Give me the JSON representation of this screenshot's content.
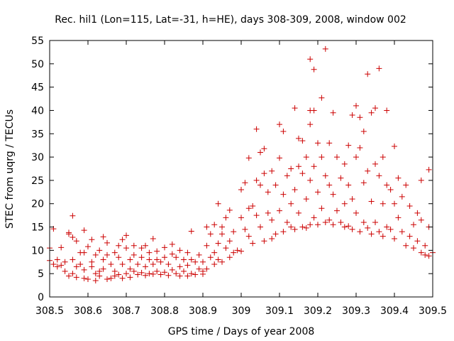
{
  "chart_data": {
    "type": "scatter",
    "title": "Rec. hil1 (Lon=115, Lat=-31, h=HE), days 308-309, 2008, window 002",
    "xlabel": "GPS time / Days of year 2008",
    "ylabel": "STEC from uqrg / TECUs",
    "xlim": [
      308.5,
      309.5
    ],
    "ylim": [
      0,
      55
    ],
    "xticks": [
      308.5,
      308.6,
      308.7,
      308.8,
      308.9,
      309.0,
      309.1,
      309.2,
      309.3,
      309.4,
      309.5
    ],
    "xtick_labels": [
      "308.5",
      "308.6",
      "308.7",
      "308.8",
      "308.9",
      "309",
      "309.1",
      "309.2",
      "309.3",
      "309.4",
      "309.5"
    ],
    "yticks": [
      0,
      5,
      10,
      15,
      20,
      25,
      30,
      35,
      40,
      45,
      50,
      55
    ],
    "ytick_labels": [
      "0",
      "5",
      "10",
      "15",
      "20",
      "25",
      "30",
      "35",
      "40",
      "45",
      "50",
      "55"
    ],
    "grid": false,
    "marker": "+",
    "marker_color": "#cc0000",
    "series": [
      {
        "name": "STEC",
        "points": [
          [
            308.5,
            7.8
          ],
          [
            308.5,
            10.5
          ],
          [
            308.51,
            14.6
          ],
          [
            308.51,
            7.0
          ],
          [
            308.52,
            6.5
          ],
          [
            308.52,
            8.0
          ],
          [
            308.53,
            6.8
          ],
          [
            308.53,
            10.6
          ],
          [
            308.54,
            5.5
          ],
          [
            308.54,
            7.5
          ],
          [
            308.55,
            13.8
          ],
          [
            308.55,
            13.5
          ],
          [
            308.55,
            4.5
          ],
          [
            308.56,
            17.4
          ],
          [
            308.56,
            12.8
          ],
          [
            308.56,
            8.0
          ],
          [
            308.56,
            5.0
          ],
          [
            308.57,
            12.0
          ],
          [
            308.57,
            6.5
          ],
          [
            308.57,
            4.2
          ],
          [
            308.58,
            9.5
          ],
          [
            308.58,
            7.0
          ],
          [
            308.59,
            14.3
          ],
          [
            308.59,
            9.5
          ],
          [
            308.59,
            5.8
          ],
          [
            308.59,
            4.0
          ],
          [
            308.6,
            10.8
          ],
          [
            308.6,
            3.8
          ],
          [
            308.61,
            12.3
          ],
          [
            308.61,
            7.5
          ],
          [
            308.61,
            6.5
          ],
          [
            308.62,
            9.0
          ],
          [
            308.62,
            5.0
          ],
          [
            308.62,
            3.5
          ],
          [
            308.63,
            10.0
          ],
          [
            308.63,
            5.5
          ],
          [
            308.63,
            4.5
          ],
          [
            308.64,
            8.0
          ],
          [
            308.64,
            12.9
          ],
          [
            308.64,
            6.0
          ],
          [
            308.65,
            11.6
          ],
          [
            308.65,
            9.0
          ],
          [
            308.65,
            3.8
          ],
          [
            308.66,
            7.0
          ],
          [
            308.66,
            4.0
          ],
          [
            308.67,
            9.5
          ],
          [
            308.67,
            5.5
          ],
          [
            308.67,
            4.5
          ],
          [
            308.68,
            11.0
          ],
          [
            308.68,
            8.5
          ],
          [
            308.68,
            4.8
          ],
          [
            308.69,
            12.3
          ],
          [
            308.69,
            7.0
          ],
          [
            308.69,
            4.0
          ],
          [
            308.7,
            10.5
          ],
          [
            308.7,
            13.2
          ],
          [
            308.7,
            5.0
          ],
          [
            308.71,
            8.0
          ],
          [
            308.71,
            6.0
          ],
          [
            308.71,
            4.2
          ],
          [
            308.72,
            11.0
          ],
          [
            308.72,
            9.0
          ],
          [
            308.72,
            5.5
          ],
          [
            308.73,
            7.0
          ],
          [
            308.73,
            4.8
          ],
          [
            308.74,
            10.5
          ],
          [
            308.74,
            8.5
          ],
          [
            308.74,
            5.2
          ],
          [
            308.75,
            11.0
          ],
          [
            308.75,
            6.5
          ],
          [
            308.75,
            4.6
          ],
          [
            308.76,
            8.0
          ],
          [
            308.76,
            9.5
          ],
          [
            308.76,
            5.0
          ],
          [
            308.77,
            12.5
          ],
          [
            308.77,
            7.0
          ],
          [
            308.77,
            4.9
          ],
          [
            308.78,
            9.8
          ],
          [
            308.78,
            8.0
          ],
          [
            308.78,
            5.5
          ],
          [
            308.79,
            7.5
          ],
          [
            308.79,
            4.8
          ],
          [
            308.8,
            10.6
          ],
          [
            308.8,
            8.5
          ],
          [
            308.8,
            5.3
          ],
          [
            308.81,
            7.0
          ],
          [
            308.81,
            4.6
          ],
          [
            308.82,
            11.3
          ],
          [
            308.82,
            9.2
          ],
          [
            308.82,
            5.8
          ],
          [
            308.83,
            8.5
          ],
          [
            308.83,
            5.0
          ],
          [
            308.84,
            6.5
          ],
          [
            308.84,
            10.0
          ],
          [
            308.84,
            4.5
          ],
          [
            308.85,
            8.0
          ],
          [
            308.85,
            5.5
          ],
          [
            308.86,
            9.5
          ],
          [
            308.86,
            6.8
          ],
          [
            308.86,
            4.5
          ],
          [
            308.87,
            14.1
          ],
          [
            308.87,
            8.0
          ],
          [
            308.87,
            5.0
          ],
          [
            308.88,
            7.5
          ],
          [
            308.88,
            4.8
          ],
          [
            308.89,
            9.0
          ],
          [
            308.89,
            6.0
          ],
          [
            308.9,
            5.5
          ],
          [
            308.9,
            7.5
          ],
          [
            308.9,
            4.9
          ],
          [
            308.91,
            11.0
          ],
          [
            308.91,
            15.0
          ],
          [
            308.91,
            6.0
          ],
          [
            308.92,
            8.5
          ],
          [
            308.92,
            13.5
          ],
          [
            308.93,
            15.5
          ],
          [
            308.93,
            9.5
          ],
          [
            308.93,
            7.0
          ],
          [
            308.94,
            20.0
          ],
          [
            308.94,
            11.5
          ],
          [
            308.94,
            8.0
          ],
          [
            308.95,
            13.5
          ],
          [
            308.95,
            15.0
          ],
          [
            308.95,
            7.5
          ],
          [
            308.96,
            17.0
          ],
          [
            308.96,
            10.5
          ],
          [
            308.97,
            18.6
          ],
          [
            308.97,
            12.0
          ],
          [
            308.97,
            8.5
          ],
          [
            308.98,
            14.0
          ],
          [
            308.98,
            9.5
          ],
          [
            308.99,
            10.0
          ],
          [
            309.0,
            23.0
          ],
          [
            309.0,
            17.0
          ],
          [
            309.0,
            9.8
          ],
          [
            309.01,
            24.5
          ],
          [
            309.01,
            14.5
          ],
          [
            309.02,
            29.8
          ],
          [
            309.02,
            19.0
          ],
          [
            309.02,
            13.0
          ],
          [
            309.03,
            19.5
          ],
          [
            309.03,
            11.5
          ],
          [
            309.04,
            36.0
          ],
          [
            309.04,
            25.0
          ],
          [
            309.04,
            17.5
          ],
          [
            309.05,
            31.0
          ],
          [
            309.05,
            24.0
          ],
          [
            309.05,
            15.0
          ],
          [
            309.06,
            31.8
          ],
          [
            309.06,
            26.5
          ],
          [
            309.06,
            12.0
          ],
          [
            309.07,
            22.5
          ],
          [
            309.07,
            18.0
          ],
          [
            309.08,
            27.0
          ],
          [
            309.08,
            16.5
          ],
          [
            309.08,
            12.5
          ],
          [
            309.09,
            24.0
          ],
          [
            309.09,
            13.5
          ],
          [
            309.1,
            37.0
          ],
          [
            309.1,
            29.8
          ],
          [
            309.1,
            18.5
          ],
          [
            309.11,
            35.5
          ],
          [
            309.11,
            22.0
          ],
          [
            309.11,
            14.0
          ],
          [
            309.12,
            26.0
          ],
          [
            309.12,
            16.0
          ],
          [
            309.13,
            27.5
          ],
          [
            309.13,
            20.0
          ],
          [
            309.13,
            15.0
          ],
          [
            309.14,
            40.5
          ],
          [
            309.14,
            23.0
          ],
          [
            309.14,
            14.5
          ],
          [
            309.15,
            34.0
          ],
          [
            309.15,
            28.0
          ],
          [
            309.15,
            18.0
          ],
          [
            309.16,
            33.5
          ],
          [
            309.16,
            26.5
          ],
          [
            309.16,
            15.0
          ],
          [
            309.17,
            30.0
          ],
          [
            309.17,
            21.0
          ],
          [
            309.17,
            14.8
          ],
          [
            309.18,
            51.0
          ],
          [
            309.18,
            37.0
          ],
          [
            309.18,
            40.0
          ],
          [
            309.18,
            25.0
          ],
          [
            309.18,
            15.5
          ],
          [
            309.19,
            48.8
          ],
          [
            309.19,
            40.0
          ],
          [
            309.19,
            28.0
          ],
          [
            309.19,
            17.0
          ],
          [
            309.2,
            33.0
          ],
          [
            309.2,
            22.5
          ],
          [
            309.2,
            15.5
          ],
          [
            309.21,
            42.7
          ],
          [
            309.21,
            30.0
          ],
          [
            309.21,
            19.0
          ],
          [
            309.22,
            53.2
          ],
          [
            309.22,
            26.0
          ],
          [
            309.22,
            16.0
          ],
          [
            309.23,
            33.0
          ],
          [
            309.23,
            24.0
          ],
          [
            309.23,
            16.5
          ],
          [
            309.24,
            39.5
          ],
          [
            309.24,
            22.0
          ],
          [
            309.24,
            15.5
          ],
          [
            309.25,
            30.0
          ],
          [
            309.25,
            18.5
          ],
          [
            309.26,
            25.5
          ],
          [
            309.26,
            16.0
          ],
          [
            309.27,
            28.5
          ],
          [
            309.27,
            20.0
          ],
          [
            309.27,
            15.0
          ],
          [
            309.28,
            32.5
          ],
          [
            309.28,
            24.0
          ],
          [
            309.28,
            15.2
          ],
          [
            309.29,
            39.0
          ],
          [
            309.29,
            21.0
          ],
          [
            309.29,
            14.5
          ],
          [
            309.3,
            41.0
          ],
          [
            309.3,
            30.0
          ],
          [
            309.3,
            18.0
          ],
          [
            309.31,
            38.5
          ],
          [
            309.31,
            32.0
          ],
          [
            309.31,
            14.0
          ],
          [
            309.32,
            35.5
          ],
          [
            309.32,
            24.5
          ],
          [
            309.32,
            16.0
          ],
          [
            309.33,
            47.8
          ],
          [
            309.33,
            27.0
          ],
          [
            309.33,
            14.8
          ],
          [
            309.34,
            39.5
          ],
          [
            309.34,
            20.5
          ],
          [
            309.34,
            13.5
          ],
          [
            309.35,
            40.5
          ],
          [
            309.35,
            28.5
          ],
          [
            309.35,
            16.0
          ],
          [
            309.36,
            49.0
          ],
          [
            309.36,
            26.0
          ],
          [
            309.36,
            14.0
          ],
          [
            309.37,
            30.0
          ],
          [
            309.37,
            20.0
          ],
          [
            309.37,
            13.0
          ],
          [
            309.38,
            40.0
          ],
          [
            309.38,
            24.0
          ],
          [
            309.38,
            15.0
          ],
          [
            309.39,
            23.0
          ],
          [
            309.39,
            14.5
          ],
          [
            309.4,
            32.3
          ],
          [
            309.4,
            20.0
          ],
          [
            309.4,
            12.5
          ],
          [
            309.41,
            25.5
          ],
          [
            309.41,
            17.0
          ],
          [
            309.42,
            21.5
          ],
          [
            309.42,
            14.0
          ],
          [
            309.43,
            24.0
          ],
          [
            309.43,
            11.0
          ],
          [
            309.44,
            19.5
          ],
          [
            309.44,
            13.0
          ],
          [
            309.45,
            15.5
          ],
          [
            309.45,
            10.5
          ],
          [
            309.46,
            18.0
          ],
          [
            309.46,
            12.0
          ],
          [
            309.47,
            25.0
          ],
          [
            309.47,
            16.5
          ],
          [
            309.47,
            9.5
          ],
          [
            309.48,
            11.0
          ],
          [
            309.48,
            9.0
          ],
          [
            309.49,
            27.3
          ],
          [
            309.49,
            15.0
          ],
          [
            309.49,
            8.8
          ],
          [
            309.5,
            9.5
          ]
        ]
      }
    ]
  }
}
